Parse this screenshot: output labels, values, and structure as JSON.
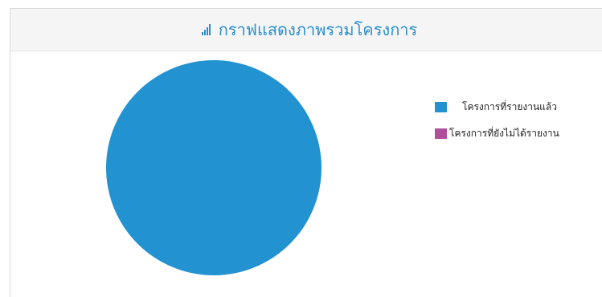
{
  "panel": {
    "title": "กราฟแสดงภาพรวมโครงการ",
    "title_icon": "bar-chart-icon",
    "accent_color": "#2b8fd0"
  },
  "chart_data": {
    "type": "pie",
    "slices": [
      {
        "label": "โครงการที่รายงานแล้ว",
        "value": 100,
        "color": "#2292d0"
      },
      {
        "label": "โครงการที่ยังไม่ได้รายงาน",
        "value": 0,
        "color": "#b0509b"
      }
    ],
    "legend_position": "right"
  }
}
